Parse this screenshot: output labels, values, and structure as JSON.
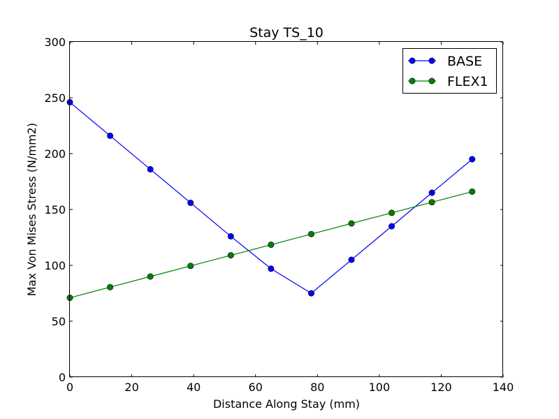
{
  "chart_data": {
    "type": "line",
    "title": "Stay TS_10",
    "xlabel": "Distance Along Stay (mm)",
    "ylabel": "Max Von Mises Stress (N/mm2)",
    "xlim": [
      0,
      140
    ],
    "ylim": [
      0,
      300
    ],
    "xticks": [
      0,
      20,
      40,
      60,
      80,
      100,
      120,
      140
    ],
    "yticks": [
      0,
      50,
      100,
      150,
      200,
      250,
      300
    ],
    "grid": false,
    "legend_position": "top-right",
    "x": [
      0,
      13,
      26,
      39,
      52,
      65,
      78,
      91,
      104,
      117,
      130
    ],
    "series": [
      {
        "name": "BASE",
        "color": "#0000ff",
        "values": [
          246,
          216,
          186,
          156,
          126,
          97,
          75,
          105,
          135,
          165,
          195
        ]
      },
      {
        "name": "FLEX1",
        "color": "#008000",
        "values": [
          71,
          80.5,
          90,
          99.5,
          109,
          118.5,
          128,
          137.5,
          147,
          156.5,
          166
        ]
      }
    ]
  }
}
